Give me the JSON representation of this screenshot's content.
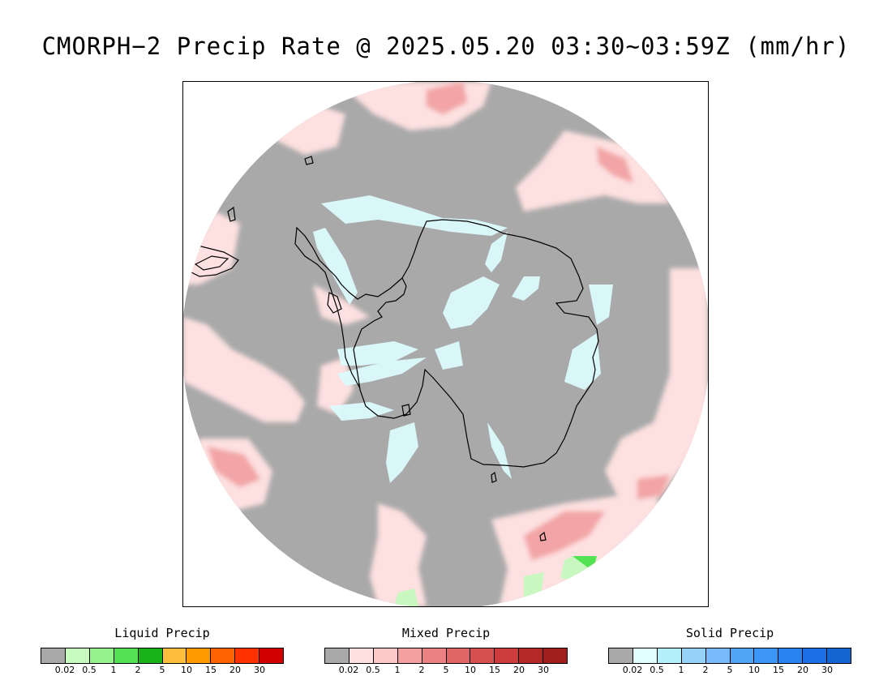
{
  "title": "CMORPH−2 Precip Rate @ 2025.05.20 03:30~03:59Z (mm/hr)",
  "colors": {
    "no_precip": "#a9a9a9",
    "mixed_light": "#fde0e0",
    "mixed_medium": "#f7a8aa",
    "solid_light": "#dcfbfd",
    "liquid_light": "#c8f8c0",
    "liquid_medium": "#52e252",
    "coastline": "#000000"
  },
  "legends": [
    {
      "title": "Liquid Precip",
      "ticks": [
        "0.02",
        "0.5",
        "1",
        "2",
        "5",
        "10",
        "15",
        "20",
        "30"
      ],
      "colors": [
        "#a9a9a9",
        "#c8fbc0",
        "#96f28c",
        "#52e252",
        "#1ab21a",
        "#ffbe3c",
        "#ff9b00",
        "#ff6400",
        "#ff3200",
        "#d20000"
      ]
    },
    {
      "title": "Mixed Precip",
      "ticks": [
        "0.02",
        "0.5",
        "1",
        "2",
        "5",
        "10",
        "15",
        "20",
        "30"
      ],
      "colors": [
        "#a9a9a9",
        "#ffe1e1",
        "#ffc8c8",
        "#f5a0a0",
        "#eb8282",
        "#e16464",
        "#d75050",
        "#cd3c3c",
        "#b42828",
        "#a01e1e"
      ]
    },
    {
      "title": "Solid Precip",
      "ticks": [
        "0.02",
        "0.5",
        "1",
        "2",
        "5",
        "10",
        "15",
        "20",
        "30"
      ],
      "colors": [
        "#a9a9a9",
        "#e1ffff",
        "#b4f0fa",
        "#96d2fa",
        "#78b9fa",
        "#50a5f5",
        "#3c96f5",
        "#2882f0",
        "#1e6ee6",
        "#1464d2"
      ]
    }
  ]
}
